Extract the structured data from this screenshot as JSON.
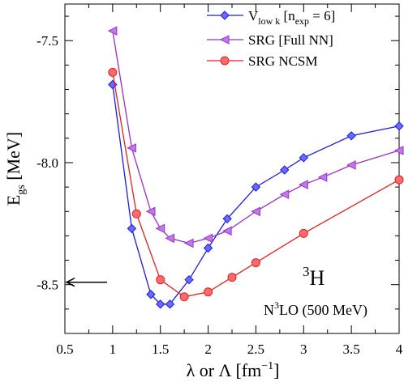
{
  "chart_data": {
    "type": "line",
    "ylabel_main": "E",
    "ylabel_sub": "gs",
    "ylabel_rest": " [MeV]",
    "xlabel_main": "λ or Λ [fm",
    "xlabel_sup": "−1",
    "xlabel_end": "]",
    "xlim": [
      0.5,
      4.0
    ],
    "ylim": [
      -8.7,
      -7.35
    ],
    "xticks": [
      {
        "v": 0.5,
        "label": "0.5"
      },
      {
        "v": 1.0,
        "label": "1"
      },
      {
        "v": 1.5,
        "label": "1.5"
      },
      {
        "v": 2.0,
        "label": "2"
      },
      {
        "v": 2.5,
        "label": "2.5"
      },
      {
        "v": 3.0,
        "label": "3"
      },
      {
        "v": 3.5,
        "label": "3.5"
      },
      {
        "v": 4.0,
        "label": "4"
      }
    ],
    "yticks": [
      {
        "v": -7.5,
        "label": "-7.5"
      },
      {
        "v": -8.0,
        "label": "-8.0"
      },
      {
        "v": -8.5,
        "label": "-8.5"
      }
    ],
    "grid": false,
    "legend_position": "top-right",
    "series": [
      {
        "key": "vlowk",
        "legend_main": "V",
        "legend_sub": "low k",
        "legend_mid": " [n",
        "legend_sub2": "exp",
        "legend_end": " = 6]",
        "color": "#1a1ae6",
        "marker_fill": "#6a6aff",
        "marker": "diamond",
        "x": [
          1.0,
          1.2,
          1.4,
          1.5,
          1.6,
          1.8,
          2.0,
          2.2,
          2.5,
          2.8,
          3.0,
          3.5,
          4.0
        ],
        "y": [
          -7.68,
          -8.27,
          -8.54,
          -8.58,
          -8.58,
          -8.48,
          -8.35,
          -8.23,
          -8.1,
          -8.03,
          -7.98,
          -7.89,
          -7.85
        ]
      },
      {
        "key": "srgfull",
        "legend_text": "SRG [Full NN]",
        "color": "#9a2fd0",
        "marker_fill": "#c07ae8",
        "marker": "triangle-left",
        "x": [
          1.0,
          1.2,
          1.4,
          1.5,
          1.6,
          1.8,
          2.0,
          2.2,
          2.5,
          2.8,
          3.0,
          3.2,
          3.5,
          4.0
        ],
        "y": [
          -7.46,
          -7.94,
          -8.2,
          -8.27,
          -8.31,
          -8.33,
          -8.31,
          -8.28,
          -8.2,
          -8.13,
          -8.09,
          -8.06,
          -8.01,
          -7.95
        ]
      },
      {
        "key": "srgncsm",
        "legend_text": "SRG NCSM",
        "color": "#e62020",
        "marker_fill": "#ff6a6a",
        "marker": "circle",
        "x": [
          1.0,
          1.25,
          1.5,
          1.75,
          2.0,
          2.25,
          2.5,
          3.0,
          4.0
        ],
        "y": [
          -7.63,
          -8.21,
          -8.48,
          -8.55,
          -8.53,
          -8.47,
          -8.41,
          -8.29,
          -8.07
        ]
      }
    ],
    "annotations": {
      "nucleus_sup": "3",
      "nucleus": "H",
      "order_pre": "N",
      "order_sup": "3",
      "order_post": "LO (500 MeV)",
      "arrow_y": -8.49
    }
  }
}
